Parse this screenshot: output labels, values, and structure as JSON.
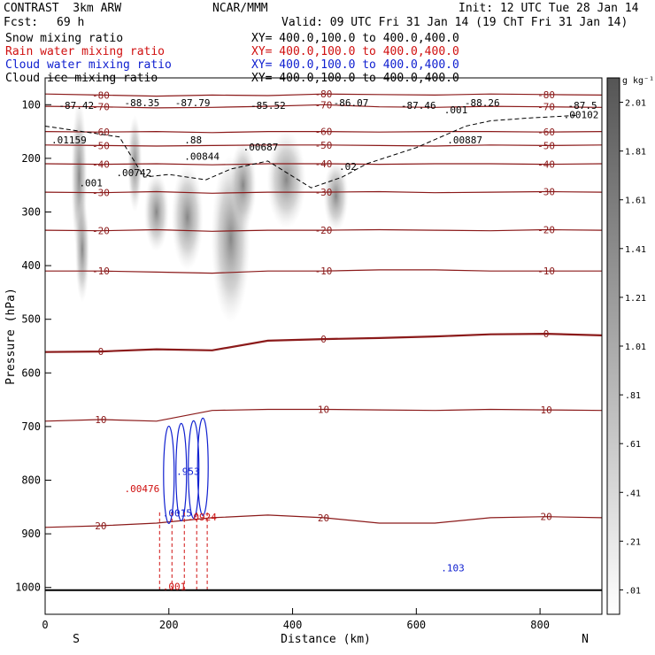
{
  "header": {
    "model": "CONTRAST  3km ARW",
    "center": "NCAR/MMM",
    "init": "Init: 12 UTC Tue 28 Jan 14",
    "fcst_label": "Fcst:",
    "fcst_value": "69 h",
    "valid": "Valid: 09 UTC Fri 31 Jan 14 (19 ChT Fri 31 Jan 14)"
  },
  "fields": [
    {
      "name": "Snow mixing ratio",
      "xy": "XY= 400.0,100.0 to 400.0,400.0",
      "color": "#000000"
    },
    {
      "name": "Rain water mixing ratio",
      "xy": "XY= 400.0,100.0 to 400.0,400.0",
      "color": "#d01010"
    },
    {
      "name": "Cloud water mixing ratio",
      "xy": "XY= 400.0,100.0 to 400.0,400.0",
      "color": "#1020d0"
    },
    {
      "name": "Cloud ice mixing ratio",
      "xy": "XY= 400.0,100.0 to 400.0,400.0",
      "color": "#000000"
    }
  ],
  "chart_data": {
    "type": "heatmap",
    "xlabel": "Distance (km)",
    "ylabel": "Pressure (hPa)",
    "xlim": [
      0,
      900
    ],
    "ylim": [
      1050,
      50
    ],
    "x_ticks": [
      0,
      200,
      400,
      600,
      800
    ],
    "y_ticks": [
      100,
      200,
      300,
      400,
      500,
      600,
      700,
      800,
      900,
      1000
    ],
    "x_end_labels": {
      "left": "S",
      "right": "N"
    },
    "colorbar": {
      "unit": "g kg⁻¹",
      "labels": [
        "2.01",
        "1.81",
        "1.61",
        "1.41",
        "1.21",
        "1.01",
        ".81",
        ".61",
        ".41",
        ".21",
        ".01"
      ]
    },
    "temperature_contours": [
      {
        "value": -80,
        "p": [
          80,
          82,
          84,
          82,
          83,
          80,
          81,
          82,
          80,
          81,
          82
        ]
      },
      {
        "value": -70,
        "p": [
          103,
          104,
          106,
          105,
          103,
          100,
          104,
          105,
          103,
          104,
          105
        ]
      },
      {
        "value": -60,
        "p": [
          150,
          151,
          150,
          152,
          150,
          150,
          151,
          150,
          150,
          151,
          150
        ]
      },
      {
        "value": -50,
        "p": [
          175,
          176,
          177,
          176,
          175,
          175,
          176,
          177,
          175,
          176,
          175
        ]
      },
      {
        "value": -40,
        "p": [
          210,
          211,
          210,
          212,
          210,
          210,
          211,
          210,
          210,
          211,
          210
        ]
      },
      {
        "value": -30,
        "p": [
          263,
          264,
          262,
          265,
          263,
          263,
          262,
          264,
          263,
          262,
          263
        ]
      },
      {
        "value": -20,
        "p": [
          334,
          335,
          333,
          336,
          334,
          334,
          333,
          334,
          335,
          333,
          334
        ]
      },
      {
        "value": -10,
        "p": [
          410,
          410,
          412,
          414,
          410,
          410,
          408,
          408,
          410,
          410,
          410
        ]
      },
      {
        "value": 0,
        "p": [
          561,
          560,
          556,
          558,
          540,
          537,
          535,
          532,
          528,
          527,
          530
        ]
      },
      {
        "value": 10,
        "p": [
          690,
          687,
          690,
          670,
          668,
          668,
          669,
          670,
          668,
          669,
          670
        ]
      },
      {
        "value": 20,
        "p": [
          888,
          885,
          880,
          870,
          865,
          870,
          880,
          880,
          870,
          868,
          870
        ]
      }
    ],
    "annotations": [
      {
        "text": "-87.42",
        "x": 22,
        "p": 108,
        "color": "#000000"
      },
      {
        "text": "-88.35",
        "x": 128,
        "p": 103,
        "color": "#000000"
      },
      {
        "text": "-87.79",
        "x": 210,
        "p": 103,
        "color": "#000000"
      },
      {
        "text": "-85.52",
        "x": 332,
        "p": 108,
        "color": "#000000"
      },
      {
        "text": "-86.07",
        "x": 466,
        "p": 103,
        "color": "#000000"
      },
      {
        "text": "-87.46",
        "x": 575,
        "p": 108,
        "color": "#000000"
      },
      {
        "text": "-88.26",
        "x": 678,
        "p": 103,
        "color": "#000000"
      },
      {
        "text": "-87.5",
        "x": 845,
        "p": 108,
        "color": "#000000"
      },
      {
        "text": ".01159",
        "x": 10,
        "p": 172,
        "color": "#000000"
      },
      {
        "text": ".00742",
        "x": 115,
        "p": 233,
        "color": "#000000"
      },
      {
        "text": ".00844",
        "x": 225,
        "p": 203,
        "color": "#000000"
      },
      {
        "text": ".00687",
        "x": 320,
        "p": 185,
        "color": "#000000"
      },
      {
        "text": ".02",
        "x": 475,
        "p": 222,
        "color": "#000000"
      },
      {
        "text": ".00887",
        "x": 650,
        "p": 172,
        "color": "#000000"
      },
      {
        "text": ".001",
        "x": 645,
        "p": 116,
        "color": "#000000"
      },
      {
        "text": ".00102",
        "x": 838,
        "p": 125,
        "color": "#000000"
      },
      {
        "text": ".001",
        "x": 55,
        "p": 252,
        "color": "#000000"
      },
      {
        "text": ".88",
        "x": 225,
        "p": 172,
        "color": "#000000"
      },
      {
        "text": ".953",
        "x": 212,
        "p": 790,
        "color": "#1020d0"
      },
      {
        "text": ".00476",
        "x": 128,
        "p": 822,
        "color": "#d01010"
      },
      {
        "text": ".0015",
        "x": 190,
        "p": 868,
        "color": "#1020d0"
      },
      {
        "text": ".0924",
        "x": 230,
        "p": 875,
        "color": "#d01010"
      },
      {
        "text": ".103",
        "x": 640,
        "p": 970,
        "color": "#1020d0"
      },
      {
        "text": ".001",
        "x": 190,
        "p": 1005,
        "color": "#d01010"
      }
    ]
  }
}
